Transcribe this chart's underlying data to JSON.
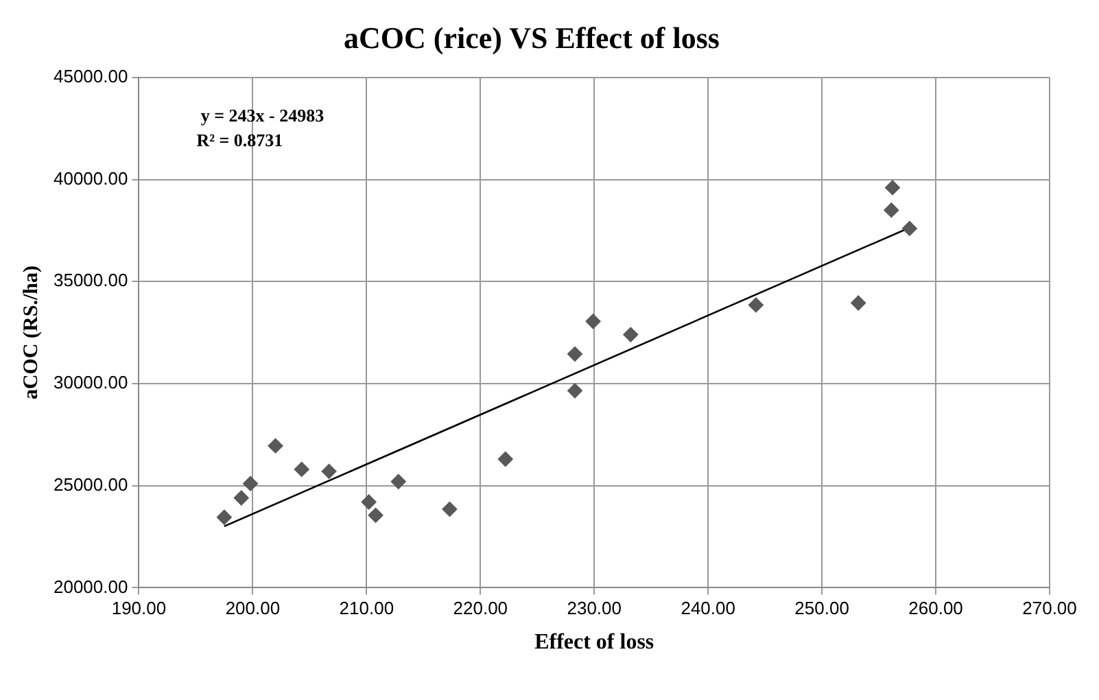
{
  "chart_data": {
    "type": "scatter",
    "title": "aCOC (rice) VS Effect of loss",
    "xlabel": "Effect of loss",
    "ylabel": "aCOC (RS./ha)",
    "annotations": [
      "y = 243x - 24983",
      "R² = 0.8731"
    ],
    "series": [
      {
        "color": "#595959",
        "marker": "diamond",
        "x": [
          197.5,
          199,
          199.8,
          202,
          204.3,
          206.7,
          210.2,
          210.8,
          212.8,
          217.3,
          222.2,
          228.3,
          228.3,
          229.9,
          233.2,
          244.2,
          253.2,
          256.1,
          256.2,
          257.7
        ],
        "values": [
          23450,
          24400,
          25100,
          26950,
          25800,
          25700,
          24200,
          23550,
          25200,
          23850,
          26300,
          31450,
          29650,
          33050,
          32400,
          33850,
          33950,
          38500,
          39600,
          37600
        ]
      },
      {
        "type": "line",
        "color": "#000000",
        "marker": "none",
        "x": [
          197.5,
          257.7
        ],
        "values": [
          23010,
          37640
        ]
      }
    ],
    "xlim": [
      190,
      270
    ],
    "xticks": [
      {
        "value": 190,
        "label": "190.00"
      },
      {
        "value": 200,
        "label": "200.00"
      },
      {
        "value": 210,
        "label": "210.00"
      },
      {
        "value": 220,
        "label": "220.00"
      },
      {
        "value": 230,
        "label": "230.00"
      },
      {
        "value": 240,
        "label": "240.00"
      },
      {
        "value": 250,
        "label": "250.00"
      },
      {
        "value": 260,
        "label": "260.00"
      },
      {
        "value": 270,
        "label": "270.00"
      }
    ],
    "ylim": [
      20000,
      45000
    ],
    "yticks": [
      {
        "value": 20000,
        "label": "20000.00"
      },
      {
        "value": 25000,
        "label": "25000.00"
      },
      {
        "value": 30000,
        "label": "30000.00"
      },
      {
        "value": 35000,
        "label": "35000.00"
      },
      {
        "value": 40000,
        "label": "40000.00"
      },
      {
        "value": 45000,
        "label": "45000.00"
      }
    ],
    "grid": true,
    "legend": false
  }
}
